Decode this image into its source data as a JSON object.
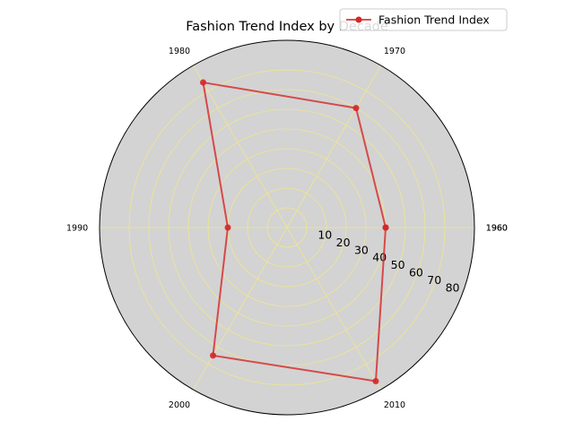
{
  "chart_data": {
    "type": "radar",
    "title": "Fashion Trend Index by Decade",
    "categories": [
      "1960",
      "1970",
      "1980",
      "1990",
      "2000",
      "2010",
      "1960"
    ],
    "series": [
      {
        "name": "Fashion Trend Index",
        "values": [
          50,
          70,
          85,
          30,
          75,
          90,
          50
        ],
        "color": "#d62728"
      }
    ],
    "radial_ticks": [
      10,
      20,
      30,
      40,
      50,
      60,
      70,
      80
    ],
    "rlim": [
      0,
      95
    ],
    "background_color": "#d3d3d3",
    "grid_color": "#f0e68c",
    "grid": true,
    "legend_position": "top-right"
  }
}
